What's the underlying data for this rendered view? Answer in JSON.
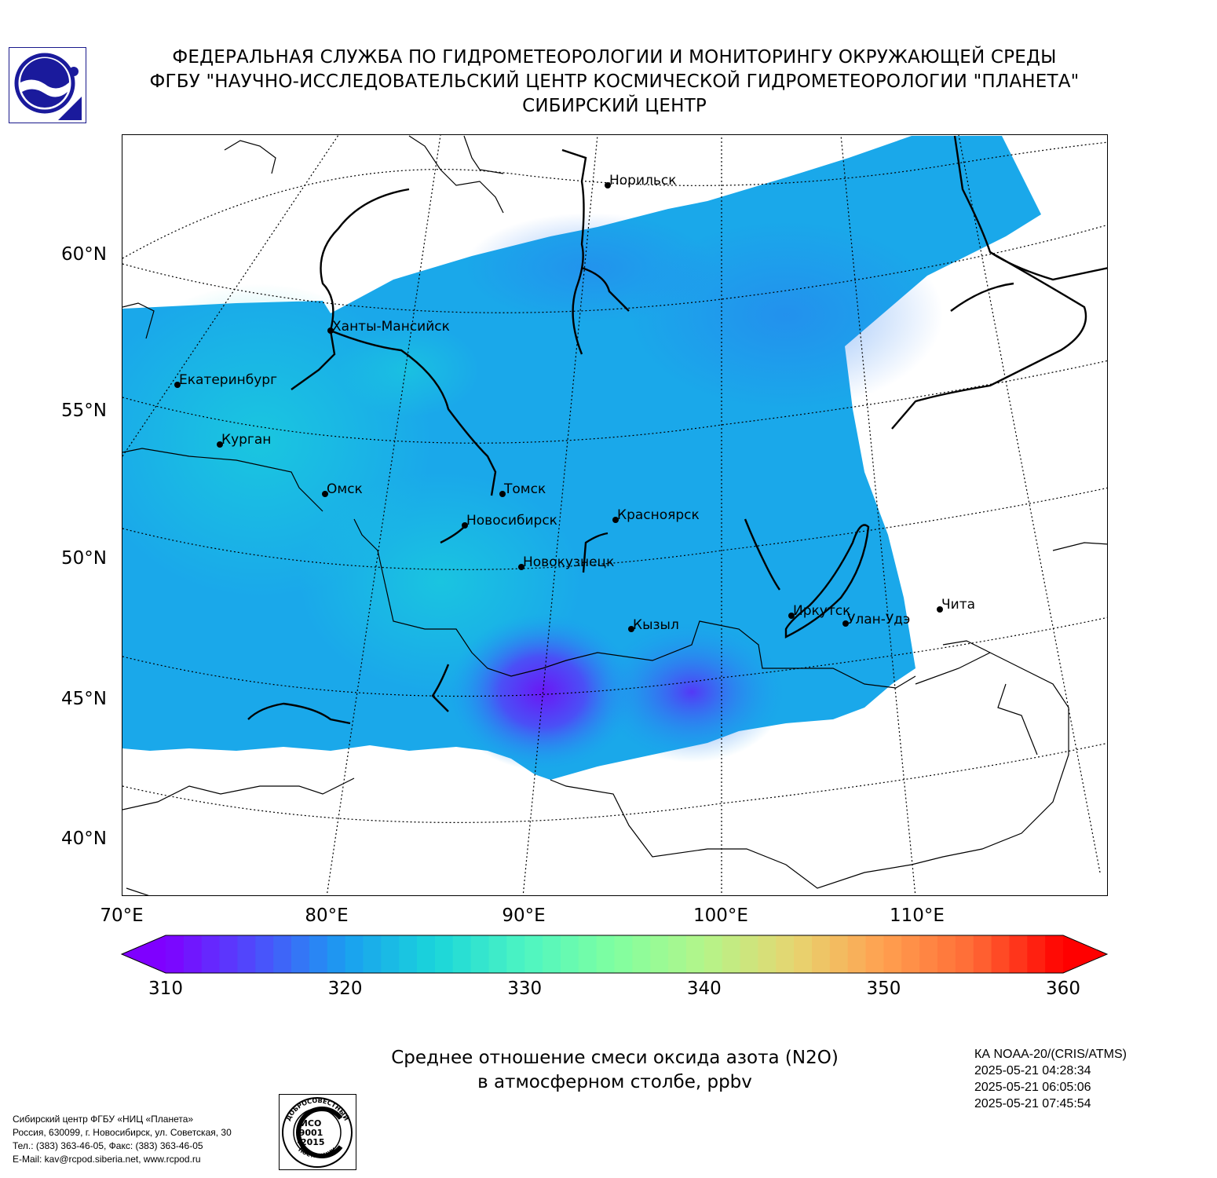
{
  "header": {
    "line1": "ФЕДЕРАЛЬНАЯ СЛУЖБА ПО ГИДРОМЕТЕОРОЛОГИИ И МОНИТОРИНГУ ОКРУЖАЮЩЕЙ СРЕДЫ",
    "line2": "ФГБУ \"НАУЧНО-ИССЛЕДОВАТЕЛЬСКИЙ ЦЕНТР КОСМИЧЕСКОЙ ГИДРОМЕТЕОРОЛОГИИ \"ПЛАНЕТА\"",
    "line3": "СИБИРСКИЙ ЦЕНТР"
  },
  "map": {
    "lat_labels": [
      "60°N",
      "55°N",
      "50°N",
      "45°N",
      "40°N"
    ],
    "lon_labels": [
      "70°E",
      "80°E",
      "90°E",
      "100°E",
      "110°E"
    ],
    "cities": [
      {
        "name": "Норильск"
      },
      {
        "name": "Ханты-Мансийск"
      },
      {
        "name": "Екатеринбург"
      },
      {
        "name": "Курган"
      },
      {
        "name": "Омск"
      },
      {
        "name": "Томск"
      },
      {
        "name": "Новосибирск"
      },
      {
        "name": "Красноярск"
      },
      {
        "name": "Новокузнецк"
      },
      {
        "name": "Кызыл"
      },
      {
        "name": "Иркутск"
      },
      {
        "name": "Улан-Удэ"
      },
      {
        "name": "Чита"
      }
    ]
  },
  "colorbar": {
    "min": 310,
    "max": 360,
    "ticks": [
      "310",
      "320",
      "330",
      "340",
      "350",
      "360"
    ],
    "colors": [
      "#7f00ff",
      "#4d4dfc",
      "#1a9ef0",
      "#1ad5da",
      "#4df5c2",
      "#80ffa0",
      "#b4f58a",
      "#e6d570",
      "#ffa050",
      "#ff6a35",
      "#ff0000"
    ]
  },
  "caption": {
    "line1": "Среднее отношение смеси оксида азота (N2O)",
    "line2": "в атмосферном столбе, ppbv"
  },
  "satellite": {
    "name": "КА NOAA-20/(CRIS/ATMS)",
    "times": [
      "2025-05-21 04:28:34",
      "2025-05-21 06:05:06",
      "2025-05-21 07:45:54"
    ]
  },
  "contact": {
    "line1": "Сибирский центр ФГБУ «НИЦ «Планета»",
    "line2": "Россия, 630099, г. Новосибирск, ул. Советская, 30",
    "line3": "Тел.: (383) 363-46-05, Факс: (383) 363-46-05",
    "line4": "E-Mail: kav@rcpod.siberia.net, www.rcpod.ru"
  },
  "iso_badge": {
    "top_text": "ДОБРОСОВЕСТНЫЙ",
    "line1": "ИСО",
    "line2": "9001",
    "line3": "-2015",
    "bottom_text": "ПОСТАВЩИК"
  }
}
